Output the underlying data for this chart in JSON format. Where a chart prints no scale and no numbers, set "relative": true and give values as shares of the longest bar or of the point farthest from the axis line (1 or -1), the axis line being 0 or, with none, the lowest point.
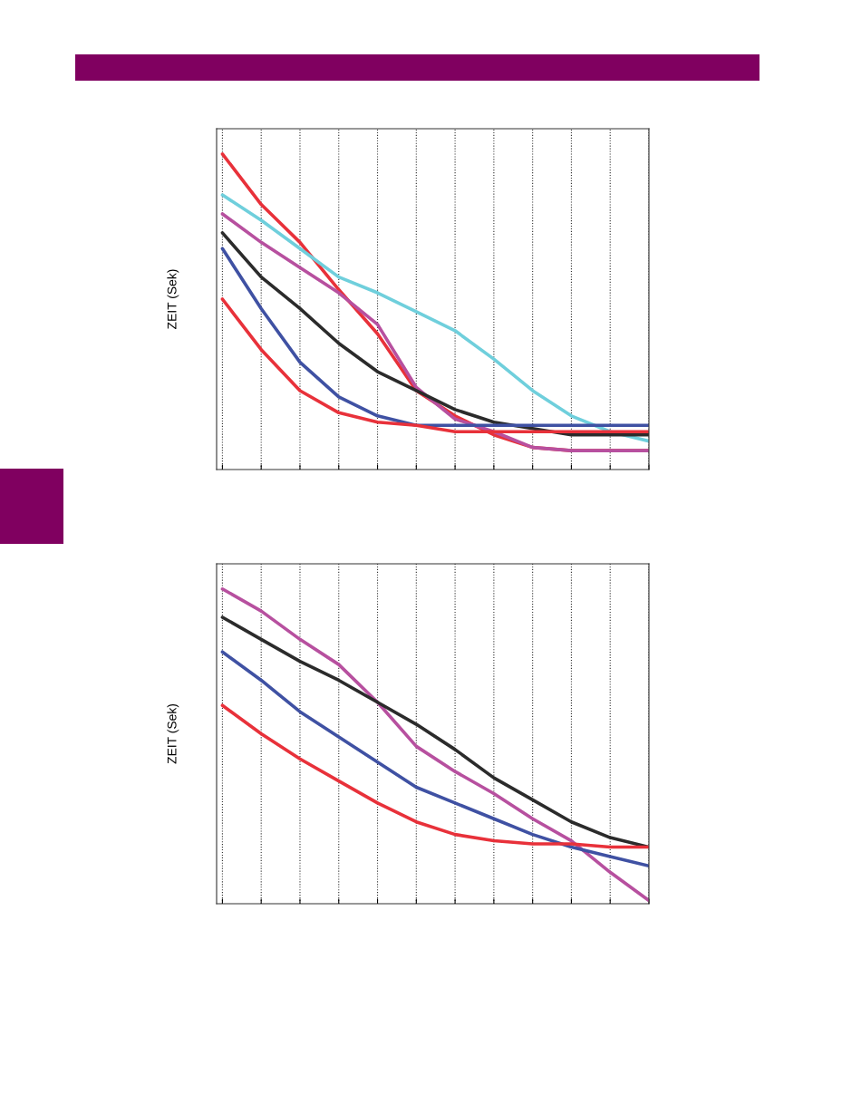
{
  "chart_data": [
    {
      "type": "line",
      "ylabel": "ZEIT (Sek)",
      "relative": true,
      "grid": "x",
      "line_style": "solid",
      "marker": "none",
      "categories": [
        null,
        null,
        null,
        null,
        null,
        null,
        null,
        null,
        null,
        null,
        null,
        null
      ],
      "series": [
        {
          "color": "#e8313a",
          "values": [
            1.0,
            0.84,
            0.72,
            0.57,
            0.43,
            0.25,
            0.17,
            0.11,
            0.07,
            0.06,
            0.06,
            0.06
          ]
        },
        {
          "color": "#6fcfdc",
          "values": [
            0.87,
            0.79,
            0.7,
            0.61,
            0.56,
            0.5,
            0.44,
            0.35,
            0.25,
            0.17,
            0.12,
            0.09
          ]
        },
        {
          "color": "#b7509f",
          "values": [
            0.81,
            0.72,
            0.64,
            0.56,
            0.46,
            0.26,
            0.16,
            0.12,
            0.07,
            0.06,
            0.06,
            0.06
          ]
        },
        {
          "color": "#2b2b2b",
          "values": [
            0.75,
            0.61,
            0.51,
            0.4,
            0.31,
            0.25,
            0.19,
            0.15,
            0.13,
            0.11,
            0.11,
            0.11
          ]
        },
        {
          "color": "#3f51a3",
          "values": [
            0.7,
            0.51,
            0.34,
            0.23,
            0.17,
            0.14,
            0.14,
            0.14,
            0.14,
            0.14,
            0.14,
            0.14
          ]
        },
        {
          "color": "#e8313a",
          "values": [
            0.54,
            0.38,
            0.25,
            0.18,
            0.15,
            0.14,
            0.12,
            0.12,
            0.12,
            0.12,
            0.12,
            0.12
          ]
        }
      ]
    },
    {
      "type": "line",
      "ylabel": "ZEIT (Sek)",
      "relative": true,
      "grid": "x",
      "line_style": "solid",
      "marker": "none",
      "categories": [
        null,
        null,
        null,
        null,
        null,
        null,
        null,
        null,
        null,
        null,
        null,
        null
      ],
      "series": [
        {
          "color": "#b7509f",
          "values": [
            1.0,
            0.93,
            0.84,
            0.76,
            0.64,
            0.5,
            0.42,
            0.35,
            0.27,
            0.2,
            0.1,
            0.01
          ]
        },
        {
          "color": "#2b2b2b",
          "values": [
            0.91,
            0.84,
            0.77,
            0.71,
            0.64,
            0.57,
            0.49,
            0.4,
            0.33,
            0.26,
            0.21,
            0.18
          ]
        },
        {
          "color": "#3f51a3",
          "values": [
            0.8,
            0.71,
            0.61,
            0.53,
            0.45,
            0.37,
            0.32,
            0.27,
            0.22,
            0.18,
            0.15,
            0.12
          ]
        },
        {
          "color": "#e8313a",
          "values": [
            0.63,
            0.54,
            0.46,
            0.39,
            0.32,
            0.26,
            0.22,
            0.2,
            0.19,
            0.19,
            0.18,
            0.18
          ]
        }
      ]
    }
  ]
}
